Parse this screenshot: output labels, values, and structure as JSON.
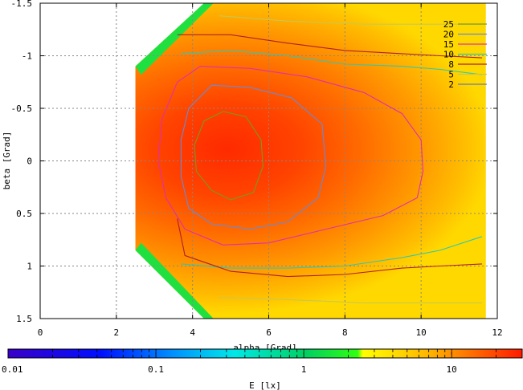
{
  "chart_data": {
    "type": "heatmap",
    "xlabel": "alpha [Grad]",
    "ylabel": "beta [Grad]",
    "xlim": [
      0,
      12
    ],
    "ylim": [
      1.5,
      -1.5
    ],
    "x_ticks": [
      "0",
      "2",
      "4",
      "6",
      "8",
      "10",
      "12"
    ],
    "y_ticks": [
      "-1.5",
      "-1",
      "-0.5",
      "0",
      "0.5",
      "1",
      "1.5"
    ],
    "x_tick_values": [
      0,
      2,
      4,
      6,
      8,
      10,
      12
    ],
    "y_tick_values": [
      -1.5,
      -1,
      -0.5,
      0,
      0.5,
      1,
      1.5
    ],
    "grid": true,
    "data_extent": {
      "alpha": [
        2.5,
        11.7
      ],
      "beta": [
        -1.5,
        1.5
      ]
    },
    "peak": {
      "alpha": 4.9,
      "beta": 0.0
    },
    "contours": [
      {
        "level": "25",
        "color": "#7a9a20",
        "path": [
          [
            4.8,
            -0.47
          ],
          [
            5.4,
            -0.42
          ],
          [
            5.8,
            -0.2
          ],
          [
            5.85,
            0.05
          ],
          [
            5.6,
            0.3
          ],
          [
            5.0,
            0.37
          ],
          [
            4.5,
            0.28
          ],
          [
            4.1,
            0.1
          ],
          [
            4.05,
            -0.15
          ],
          [
            4.3,
            -0.38
          ]
        ]
      },
      {
        "level": "20",
        "color": "#6a8ad8",
        "path": [
          [
            4.5,
            -0.72
          ],
          [
            5.5,
            -0.7
          ],
          [
            6.6,
            -0.6
          ],
          [
            7.4,
            -0.35
          ],
          [
            7.5,
            0.05
          ],
          [
            7.3,
            0.35
          ],
          [
            6.5,
            0.58
          ],
          [
            5.5,
            0.65
          ],
          [
            4.5,
            0.6
          ],
          [
            3.9,
            0.45
          ],
          [
            3.7,
            0.15
          ],
          [
            3.7,
            -0.2
          ],
          [
            3.9,
            -0.5
          ]
        ]
      },
      {
        "level": "15",
        "color": "#e030a8",
        "path": [
          [
            4.2,
            -0.9
          ],
          [
            5.5,
            -0.88
          ],
          [
            7.0,
            -0.8
          ],
          [
            8.5,
            -0.65
          ],
          [
            9.5,
            -0.45
          ],
          [
            10.0,
            -0.2
          ],
          [
            10.05,
            0.1
          ],
          [
            9.9,
            0.35
          ],
          [
            9.0,
            0.52
          ],
          [
            7.5,
            0.65
          ],
          [
            6.0,
            0.78
          ],
          [
            4.8,
            0.8
          ],
          [
            3.8,
            0.65
          ],
          [
            3.3,
            0.35
          ],
          [
            3.1,
            0.0
          ],
          [
            3.2,
            -0.4
          ],
          [
            3.6,
            -0.75
          ]
        ]
      },
      {
        "level": "10",
        "color": "#30c8b0",
        "path": [
          [
            3.7,
            -1.02
          ],
          [
            5.0,
            -1.05
          ],
          [
            6.5,
            -1.0
          ],
          [
            8.0,
            -0.92
          ],
          [
            9.5,
            -0.9
          ],
          [
            10.5,
            -0.87
          ],
          [
            11.6,
            -0.82
          ]
        ],
        "path2": [
          [
            3.7,
            0.98
          ],
          [
            5.0,
            1.02
          ],
          [
            6.5,
            1.02
          ],
          [
            8.0,
            1.0
          ],
          [
            9.5,
            0.92
          ],
          [
            10.5,
            0.85
          ],
          [
            11.6,
            0.72
          ]
        ]
      },
      {
        "level": "8",
        "color": "#b02020",
        "path": [
          [
            3.6,
            -1.2
          ],
          [
            5.0,
            -1.2
          ],
          [
            6.5,
            -1.12
          ],
          [
            8.0,
            -1.05
          ],
          [
            9.5,
            -1.02
          ],
          [
            10.5,
            -1.0
          ],
          [
            11.6,
            -0.98
          ]
        ],
        "path2": [
          [
            3.6,
            0.55
          ],
          [
            3.8,
            0.9
          ],
          [
            5.0,
            1.05
          ],
          [
            6.5,
            1.1
          ],
          [
            8.0,
            1.08
          ],
          [
            9.5,
            1.02
          ],
          [
            10.5,
            1.0
          ],
          [
            11.6,
            0.98
          ]
        ]
      },
      {
        "level": "5",
        "color": "#c8c850",
        "path": [
          [
            4.7,
            -1.38
          ],
          [
            6.5,
            -1.33
          ],
          [
            8.5,
            -1.3
          ],
          [
            10.5,
            -1.3
          ],
          [
            11.6,
            -1.3
          ]
        ],
        "path2": [
          [
            4.7,
            1.3
          ],
          [
            6.5,
            1.32
          ],
          [
            8.5,
            1.35
          ],
          [
            10.5,
            1.35
          ],
          [
            11.6,
            1.35
          ]
        ]
      },
      {
        "level": "2",
        "color": "#6a7aa8",
        "path": [],
        "path2": []
      }
    ],
    "colorbar": {
      "label": "E [lx]",
      "scale": "log",
      "range": [
        0.01,
        30
      ],
      "tick_labels": [
        "0.01",
        "0.1",
        "1",
        "10"
      ],
      "tick_values": [
        0.01,
        0.1,
        1,
        10
      ]
    }
  }
}
